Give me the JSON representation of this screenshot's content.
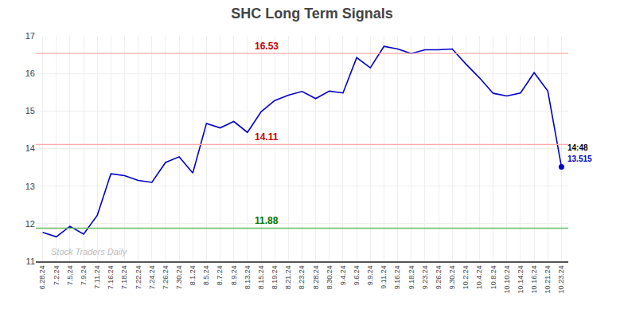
{
  "chart_data": {
    "type": "line",
    "title": "SHC Long Term Signals",
    "categories": [
      "6.28.24",
      "7.2.24",
      "7.5.24",
      "7.9.24",
      "7.11.24",
      "7.16.24",
      "7.18.24",
      "7.22.24",
      "7.24.24",
      "7.26.24",
      "7.30.24",
      "8.1.24",
      "8.5.24",
      "8.7.24",
      "8.9.24",
      "8.13.24",
      "8.15.24",
      "8.19.24",
      "8.21.24",
      "8.23.24",
      "8.28.24",
      "8.30.24",
      "9.4.24",
      "9.6.24",
      "9.9.24",
      "9.11.24",
      "9.16.24",
      "9.18.24",
      "9.23.24",
      "9.26.24",
      "9.30.24",
      "10.2.24",
      "10.4.24",
      "10.8.24",
      "10.10.24",
      "10.14.24",
      "10.16.24",
      "10.21.24",
      "10.23.24"
    ],
    "values": [
      11.77,
      11.65,
      11.93,
      11.72,
      12.22,
      13.33,
      13.28,
      13.15,
      13.1,
      13.63,
      13.78,
      13.35,
      14.67,
      14.55,
      14.72,
      14.43,
      14.98,
      15.28,
      15.42,
      15.52,
      15.33,
      15.53,
      15.48,
      16.42,
      16.15,
      16.72,
      16.65,
      16.53,
      16.63,
      16.63,
      16.65,
      16.25,
      15.88,
      15.47,
      15.4,
      15.48,
      16.02,
      15.53,
      13.515
    ],
    "color": "#0000cc",
    "hlines": [
      {
        "value": 16.53,
        "label": "16.53",
        "color": "#ffaaaa",
        "label_color": "#cc0000"
      },
      {
        "value": 14.11,
        "label": "14.11",
        "color": "#ffaaaa",
        "label_color": "#cc0000"
      },
      {
        "value": 11.88,
        "label": "11.88",
        "color": "#66bb66",
        "label_color": "#007700"
      }
    ],
    "last_point": {
      "value": 13.515,
      "color": "#0000cc",
      "time_label": "14:48",
      "value_label": "13.515"
    },
    "watermark": {
      "text": "Stock Traders Daily",
      "color": "#bbbbbb"
    },
    "ylim": [
      11,
      17
    ],
    "yticks": [
      11,
      12,
      13,
      14,
      15,
      16,
      17
    ],
    "grid": true
  }
}
